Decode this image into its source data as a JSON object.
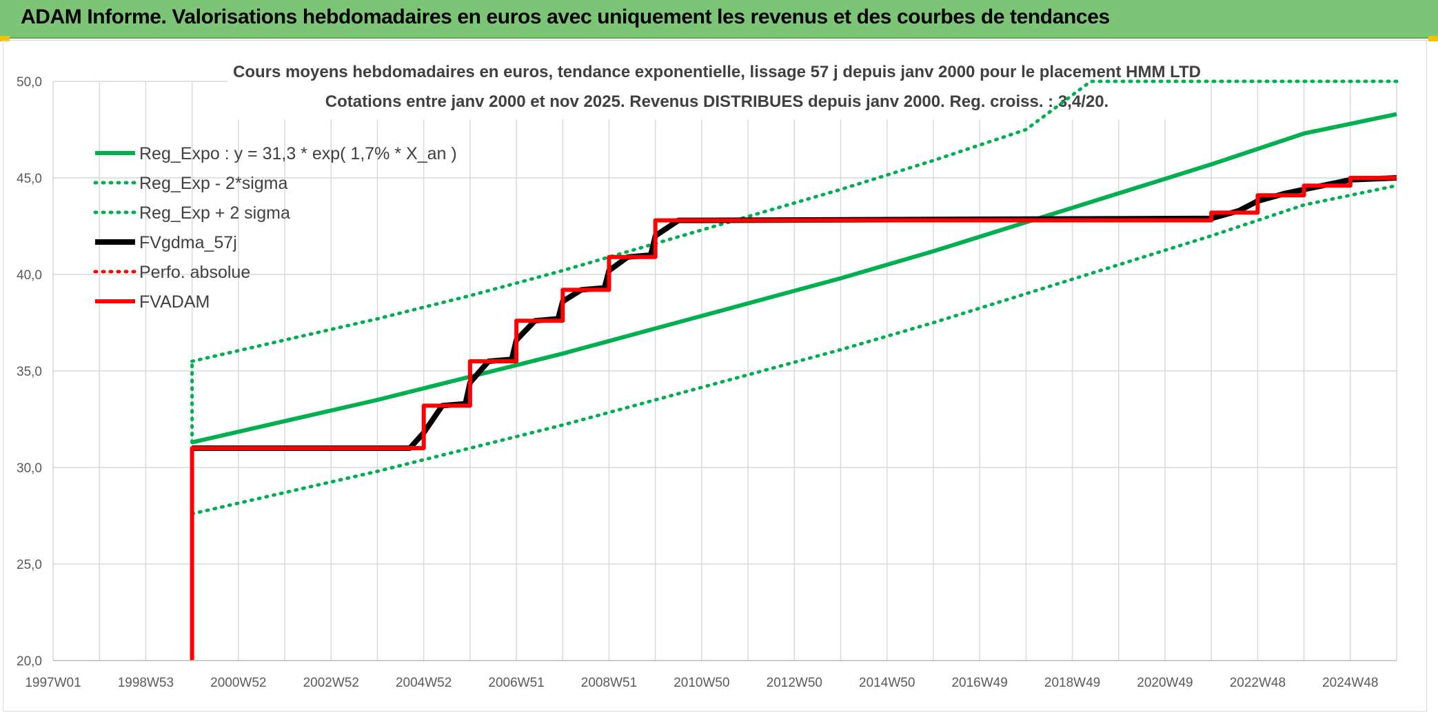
{
  "header": {
    "title": "ADAM Informe. Valorisations hebdomadaires en euros avec uniquement les revenus et des courbes de tendances"
  },
  "colors": {
    "header_bg": "#7cc576",
    "green": "#00b050",
    "red": "#ff0000",
    "black": "#000000",
    "grid": "#d9d9d9"
  },
  "chart_data": {
    "type": "line",
    "title_lines": [
      "Cours moyens hebdomadaires en euros, tendance exponentielle, lissage 57 j depuis janv 2000 pour le placement HMM LTD",
      "Cotations entre janv 2000 et nov 2025. Revenus DISTRIBUES depuis janv 2000. Reg. croiss. : 3,4/20."
    ],
    "xlabel": "",
    "ylabel": "",
    "x_ticks": [
      "1997W01",
      "1998W53",
      "2000W52",
      "2002W52",
      "2004W52",
      "2006W51",
      "2008W51",
      "2010W50",
      "2012W50",
      "2014W50",
      "2016W49",
      "2018W49",
      "2020W49",
      "2022W48",
      "2024W48"
    ],
    "x_range": [
      1997.0,
      2026.0
    ],
    "y_ticks": [
      "20,0",
      "25,0",
      "30,0",
      "35,0",
      "40,0",
      "45,0",
      "50,0"
    ],
    "ylim": [
      20,
      50
    ],
    "gridlines": true,
    "legend_position": "top-left",
    "series": [
      {
        "name": "Reg_Expo : y = 31,3 * exp( 1,7% *  X_an )",
        "style": "solid",
        "color": "#00b050",
        "x": [
          2000.0,
          2002.0,
          2004.0,
          2006.0,
          2008.0,
          2010.0,
          2012.0,
          2014.0,
          2016.0,
          2018.0,
          2020.0,
          2022.0,
          2024.0,
          2026.0
        ],
        "y": [
          31.3,
          32.4,
          33.5,
          34.7,
          35.9,
          37.2,
          38.5,
          39.8,
          41.2,
          42.7,
          44.2,
          45.7,
          47.3,
          48.3
        ]
      },
      {
        "name": "Reg_Exp - 2*sigma",
        "style": "dotted",
        "color": "#00b050",
        "x": [
          2000.0,
          2002.0,
          2004.0,
          2006.0,
          2008.0,
          2010.0,
          2012.0,
          2014.0,
          2016.0,
          2018.0,
          2020.0,
          2022.0,
          2024.0,
          2026.0
        ],
        "y": [
          27.6,
          28.7,
          29.8,
          31.0,
          32.2,
          33.5,
          34.8,
          36.1,
          37.5,
          39.0,
          40.5,
          42.0,
          43.6,
          44.6
        ]
      },
      {
        "name": "Reg_Exp + 2 sigma",
        "style": "dotted",
        "color": "#00b050",
        "x": [
          2000.0,
          2002.0,
          2004.0,
          2006.0,
          2008.0,
          2010.0,
          2012.0,
          2014.0,
          2016.0,
          2018.0,
          2019.4,
          2026.0
        ],
        "y": [
          35.5,
          36.6,
          37.7,
          38.9,
          40.2,
          41.6,
          43.0,
          44.4,
          45.9,
          47.5,
          50.0,
          50.0
        ]
      },
      {
        "name": "FVgdma_57j",
        "style": "solid",
        "color": "#000000",
        "x": [
          2000.0,
          2004.7,
          2005.0,
          2005.4,
          2005.9,
          2006.0,
          2006.4,
          2006.9,
          2007.0,
          2007.4,
          2007.9,
          2008.0,
          2008.4,
          2008.9,
          2009.0,
          2009.4,
          2009.9,
          2010.0,
          2010.5,
          2011.0,
          2022.0,
          2022.6,
          2023.0,
          2023.6,
          2024.0,
          2024.6,
          2025.0,
          2026.0
        ],
        "y": [
          31.0,
          31.0,
          31.8,
          33.2,
          33.3,
          34.4,
          35.5,
          35.6,
          36.6,
          37.6,
          37.7,
          38.6,
          39.2,
          39.3,
          40.2,
          40.9,
          41.0,
          42.0,
          42.8,
          42.8,
          42.9,
          43.3,
          43.8,
          44.2,
          44.4,
          44.7,
          44.9,
          45.0
        ]
      },
      {
        "name": "Perfo. absolue",
        "style": "dotted",
        "color": "#ff0000",
        "x": [
          2000.0,
          2026.0
        ],
        "y": [
          31.0,
          45.0
        ]
      },
      {
        "name": "FVADAM",
        "style": "solid",
        "color": "#ff0000",
        "x": [
          2000.0,
          2000.0,
          2005.0,
          2005.0,
          2006.0,
          2006.0,
          2007.0,
          2007.0,
          2008.0,
          2008.0,
          2009.0,
          2009.0,
          2010.0,
          2010.0,
          2022.0,
          2022.0,
          2023.0,
          2023.0,
          2024.0,
          2024.0,
          2025.0,
          2025.0,
          2026.0
        ],
        "y": [
          20.0,
          31.0,
          31.0,
          33.2,
          33.2,
          35.5,
          35.5,
          37.6,
          37.6,
          39.2,
          39.2,
          40.9,
          40.9,
          42.8,
          42.8,
          43.2,
          43.2,
          44.1,
          44.1,
          44.6,
          44.6,
          45.0,
          45.0
        ]
      }
    ]
  }
}
